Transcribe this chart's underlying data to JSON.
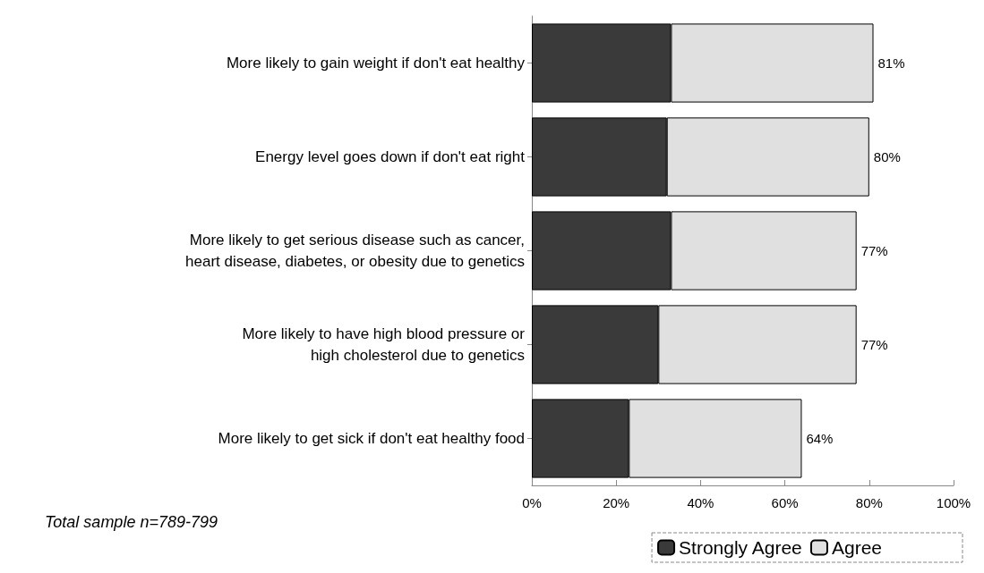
{
  "chart_data": {
    "type": "bar",
    "orientation": "horizontal",
    "stacked": true,
    "categories": [
      "More likely to gain weight if don't eat healthy",
      "Energy level goes down if don't eat right",
      "More likely to get serious disease such as cancer,\nheart disease, diabetes, or obesity due to genetics",
      "More likely to have high blood pressure or\nhigh cholesterol due to genetics",
      "More likely to get sick if don't eat healthy food"
    ],
    "series": [
      {
        "name": "Strongly Agree",
        "color": "#3a3a3a",
        "values": [
          33,
          32,
          33,
          30,
          23
        ]
      },
      {
        "name": "Agree",
        "color": "#e0e0e0",
        "values": [
          48,
          48,
          44,
          47,
          41
        ]
      }
    ],
    "totals": [
      "81%",
      "80%",
      "77%",
      "77%",
      "64%"
    ],
    "xlim": [
      0,
      100
    ],
    "xticks": [
      {
        "value": 0,
        "label": "0%"
      },
      {
        "value": 20,
        "label": "20%"
      },
      {
        "value": 40,
        "label": "40%"
      },
      {
        "value": 60,
        "label": "60%"
      },
      {
        "value": 80,
        "label": "80%"
      },
      {
        "value": 100,
        "label": "100%"
      }
    ],
    "grid": false,
    "legend": "bottom right",
    "annotations": [
      "Total sample n=789-799"
    ]
  }
}
